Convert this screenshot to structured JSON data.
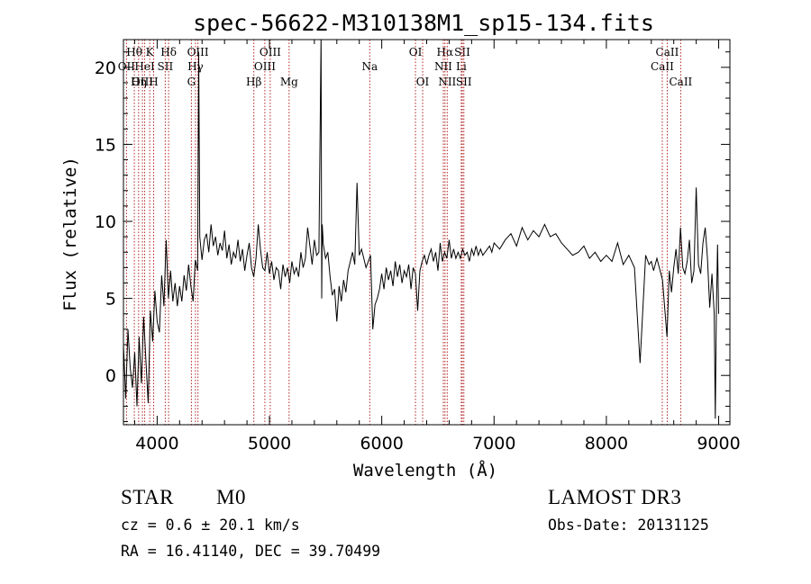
{
  "chart_data": {
    "type": "line",
    "title": "spec-56622-M310138M1_sp15-134.fits",
    "xlabel": "Wavelength (Å)",
    "ylabel": "Flux (relative)",
    "xlim": [
      3700,
      9100
    ],
    "ylim": [
      -3.2,
      21.8
    ],
    "xticks": [
      4000,
      5000,
      6000,
      7000,
      8000,
      9000
    ],
    "yticks": [
      0,
      5,
      10,
      15,
      20
    ],
    "series": [
      {
        "name": "flux",
        "x": [
          3700,
          3720,
          3740,
          3760,
          3780,
          3800,
          3820,
          3840,
          3860,
          3880,
          3900,
          3920,
          3940,
          3960,
          3980,
          4000,
          4020,
          4040,
          4060,
          4080,
          4100,
          4120,
          4140,
          4160,
          4180,
          4200,
          4220,
          4240,
          4260,
          4280,
          4300,
          4320,
          4340,
          4360,
          4370,
          4380,
          4390,
          4400,
          4420,
          4440,
          4460,
          4480,
          4500,
          4520,
          4540,
          4560,
          4580,
          4600,
          4620,
          4640,
          4660,
          4680,
          4700,
          4720,
          4740,
          4760,
          4780,
          4800,
          4820,
          4840,
          4860,
          4880,
          4900,
          4920,
          4940,
          4960,
          4980,
          5000,
          5020,
          5040,
          5060,
          5080,
          5100,
          5120,
          5140,
          5160,
          5180,
          5200,
          5220,
          5240,
          5260,
          5280,
          5300,
          5320,
          5340,
          5360,
          5380,
          5400,
          5420,
          5440,
          5460,
          5465,
          5470,
          5480,
          5500,
          5520,
          5540,
          5560,
          5580,
          5600,
          5620,
          5640,
          5660,
          5680,
          5700,
          5720,
          5740,
          5760,
          5780,
          5800,
          5820,
          5840,
          5860,
          5880,
          5900,
          5920,
          5940,
          5960,
          5980,
          6000,
          6020,
          6040,
          6060,
          6080,
          6100,
          6120,
          6140,
          6160,
          6180,
          6200,
          6220,
          6240,
          6260,
          6280,
          6300,
          6320,
          6340,
          6360,
          6380,
          6400,
          6420,
          6440,
          6460,
          6480,
          6500,
          6520,
          6540,
          6560,
          6580,
          6600,
          6620,
          6640,
          6660,
          6680,
          6700,
          6720,
          6740,
          6760,
          6780,
          6800,
          6820,
          6840,
          6860,
          6880,
          6900,
          6920,
          6940,
          6960,
          6980,
          7000,
          7050,
          7100,
          7150,
          7200,
          7250,
          7300,
          7350,
          7400,
          7450,
          7500,
          7550,
          7600,
          7650,
          7700,
          7750,
          7800,
          7850,
          7900,
          7950,
          8000,
          8050,
          8100,
          8150,
          8200,
          8250,
          8300,
          8350,
          8380,
          8400,
          8420,
          8450,
          8500,
          8540,
          8560,
          8580,
          8600,
          8620,
          8640,
          8660,
          8680,
          8700,
          8720,
          8740,
          8760,
          8780,
          8800,
          8820,
          8840,
          8860,
          8880,
          8900,
          8920,
          8940,
          8960,
          8970,
          8980,
          8990,
          9000
        ],
        "values": [
          2.0,
          -1.5,
          3.0,
          0.5,
          -0.8,
          1.5,
          -2.0,
          2.5,
          -0.5,
          3.8,
          1.0,
          -1.8,
          4.2,
          2.2,
          5.5,
          3.5,
          2.8,
          6.5,
          4.5,
          8.8,
          5.0,
          6.8,
          4.8,
          6.0,
          4.5,
          5.8,
          4.8,
          6.5,
          5.5,
          7.2,
          5.8,
          4.8,
          7.5,
          6.8,
          21.0,
          9.0,
          8.2,
          7.5,
          8.8,
          9.2,
          8.0,
          9.8,
          8.4,
          9.0,
          7.8,
          8.6,
          8.1,
          9.4,
          7.6,
          8.5,
          7.2,
          8.0,
          7.6,
          8.8,
          7.4,
          8.2,
          6.8,
          7.8,
          8.6,
          7.0,
          6.4,
          7.6,
          9.8,
          8.2,
          7.0,
          6.8,
          8.0,
          6.6,
          7.4,
          6.2,
          7.0,
          6.8,
          5.6,
          7.2,
          6.4,
          7.0,
          6.0,
          7.4,
          6.6,
          7.0,
          6.4,
          8.0,
          7.0,
          7.6,
          9.6,
          8.4,
          7.2,
          8.8,
          7.8,
          8.0,
          22.0,
          5.0,
          9.8,
          8.5,
          7.6,
          8.0,
          6.4,
          5.2,
          5.6,
          3.5,
          5.8,
          4.8,
          6.2,
          5.4,
          6.8,
          7.4,
          8.0,
          7.2,
          12.5,
          7.8,
          8.2,
          7.6,
          7.0,
          7.4,
          7.8,
          3.0,
          4.6,
          5.0,
          5.6,
          6.6,
          5.6,
          7.0,
          6.2,
          6.8,
          5.8,
          7.4,
          6.4,
          7.2,
          6.0,
          6.8,
          6.4,
          7.2,
          5.6,
          7.0,
          6.6,
          4.2,
          6.8,
          7.4,
          7.8,
          7.2,
          7.8,
          8.2,
          7.4,
          8.0,
          6.8,
          8.6,
          7.4,
          8.0,
          7.6,
          8.8,
          7.6,
          8.2,
          7.6,
          8.0,
          7.6,
          8.2,
          7.8,
          8.0,
          7.4,
          8.2,
          7.8,
          8.4,
          7.8,
          8.2,
          7.8,
          8.0,
          8.2,
          8.4,
          8.0,
          8.6,
          8.2,
          8.8,
          9.2,
          8.4,
          9.6,
          8.8,
          9.4,
          9.0,
          9.8,
          9.0,
          9.2,
          8.6,
          8.2,
          7.8,
          8.0,
          8.4,
          7.6,
          8.0,
          7.4,
          7.8,
          7.4,
          8.6,
          7.2,
          7.8,
          7.0,
          0.8,
          7.8,
          7.2,
          7.4,
          6.8,
          7.6,
          6.2,
          2.5,
          6.8,
          5.4,
          7.0,
          8.2,
          6.6,
          9.6,
          7.0,
          6.6,
          7.4,
          8.8,
          6.0,
          6.8,
          12.2,
          7.2,
          6.6,
          8.6,
          9.6,
          7.6,
          4.4,
          6.6,
          4.0,
          -2.8,
          4.2,
          8.5,
          4.0
        ]
      }
    ],
    "line_markers": [
      {
        "label": "Hθ",
        "x": 3797,
        "row": 1
      },
      {
        "label": "OII",
        "x": 3727,
        "row": 2
      },
      {
        "label": "OIII",
        "x": 3869,
        "row": 3
      },
      {
        "label": "K",
        "x": 3934,
        "row": 1
      },
      {
        "label": "HeI",
        "x": 3889,
        "row": 2
      },
      {
        "label": "Hη",
        "x": 3835,
        "row": 3
      },
      {
        "label": "Hδ",
        "x": 4102,
        "row": 1
      },
      {
        "label": "SII",
        "x": 4072,
        "row": 2
      },
      {
        "label": "H",
        "x": 3969,
        "row": 3
      },
      {
        "label": "OIII",
        "x": 4363,
        "row": 1
      },
      {
        "label": "Hγ",
        "x": 4341,
        "row": 2
      },
      {
        "label": "G",
        "x": 4305,
        "row": 3
      },
      {
        "label": "OIII",
        "x": 5007,
        "row": 1
      },
      {
        "label": "OIII",
        "x": 4959,
        "row": 2
      },
      {
        "label": "Hβ",
        "x": 4861,
        "row": 3
      },
      {
        "label": "Mg",
        "x": 5175,
        "row": 3
      },
      {
        "label": "Na",
        "x": 5893,
        "row": 2
      },
      {
        "label": "OI",
        "x": 6300,
        "row": 1
      },
      {
        "label": "OI",
        "x": 6364,
        "row": 3
      },
      {
        "label": "Hα",
        "x": 6563,
        "row": 1
      },
      {
        "label": "NII",
        "x": 6548,
        "row": 2
      },
      {
        "label": "NII",
        "x": 6583,
        "row": 3
      },
      {
        "label": "SII",
        "x": 6717,
        "row": 1
      },
      {
        "label": "Li",
        "x": 6708,
        "row": 2
      },
      {
        "label": "SII",
        "x": 6731,
        "row": 3
      },
      {
        "label": "CaII",
        "x": 8542,
        "row": 1
      },
      {
        "label": "CaII",
        "x": 8498,
        "row": 2
      },
      {
        "label": "CaII",
        "x": 8662,
        "row": 3
      }
    ]
  },
  "info": {
    "object_type": "STAR",
    "subclass": "M0",
    "survey": "LAMOST DR3",
    "redshift": "cz = 0.6 ± 20.1 km/s",
    "obs_date": "Obs-Date: 20131125",
    "coords": "RA =  16.41140, DEC =  39.70499"
  },
  "colors": {
    "spectrum": "#000000",
    "marker": "#b22222",
    "text": "#000000"
  }
}
